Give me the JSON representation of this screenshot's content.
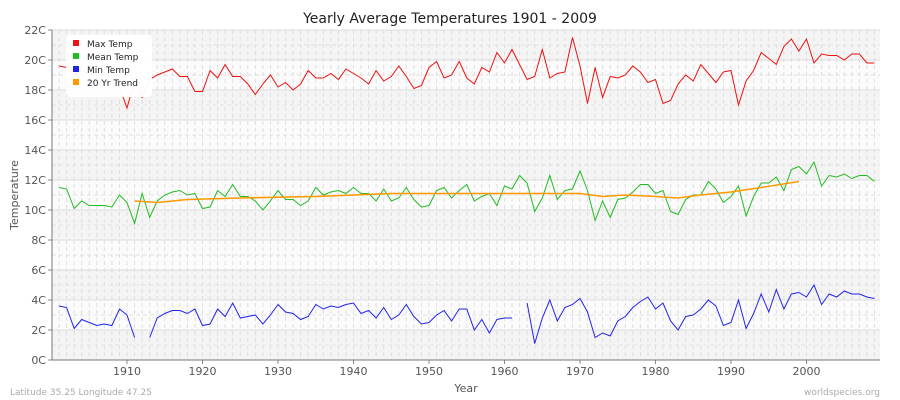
{
  "chart_data": {
    "type": "line",
    "title": "Yearly Average Temperatures 1901 - 2009",
    "xlabel": "Year",
    "ylabel": "Temperature",
    "xlim": [
      1901,
      2009
    ],
    "ylim": [
      0,
      22
    ],
    "x_ticks": [
      1910,
      1920,
      1930,
      1940,
      1950,
      1960,
      1970,
      1980,
      1990,
      2000
    ],
    "y_ticks": [
      "0C",
      "2C",
      "4C",
      "6C",
      "8C",
      "10C",
      "12C",
      "14C",
      "16C",
      "18C",
      "20C",
      "22C"
    ],
    "grid": true,
    "legend_position": "top-left",
    "x_start": 1901,
    "series": [
      {
        "name": "Max Temp",
        "color": "#ee1111",
        "values": [
          19.6,
          19.5,
          19.0,
          19.3,
          19.1,
          19.2,
          19.0,
          19.2,
          18.2,
          16.8,
          18.6,
          17.5,
          18.7,
          19.0,
          19.2,
          19.4,
          18.9,
          18.9,
          17.9,
          17.9,
          19.3,
          18.8,
          19.7,
          18.9,
          18.9,
          18.4,
          17.7,
          18.4,
          19.0,
          18.2,
          18.5,
          18.0,
          18.4,
          19.3,
          18.8,
          18.8,
          19.1,
          18.7,
          19.4,
          19.1,
          18.8,
          18.4,
          19.3,
          18.6,
          18.9,
          19.6,
          18.9,
          18.1,
          18.3,
          19.5,
          19.9,
          18.8,
          19.0,
          19.9,
          18.8,
          18.4,
          19.5,
          19.2,
          20.5,
          19.8,
          20.7,
          19.7,
          18.7,
          18.9,
          20.7,
          18.8,
          19.1,
          19.2,
          21.5,
          19.6,
          17.1,
          19.5,
          17.5,
          18.9,
          18.8,
          19.0,
          19.6,
          19.2,
          18.5,
          18.7,
          17.1,
          17.3,
          18.4,
          19.0,
          18.6,
          19.7,
          19.1,
          18.5,
          19.2,
          19.3,
          17.0,
          18.6,
          19.3,
          20.5,
          20.1,
          19.7,
          20.9,
          21.4,
          20.6,
          21.4,
          19.8,
          20.4,
          20.3,
          20.3,
          20.0,
          20.4,
          20.4,
          19.8,
          19.8
        ]
      },
      {
        "name": "Mean Temp",
        "color": "#22bb22",
        "values": [
          11.5,
          11.4,
          10.1,
          10.6,
          10.3,
          10.3,
          10.3,
          10.2,
          11.0,
          10.5,
          9.1,
          11.1,
          9.5,
          10.6,
          11.0,
          11.2,
          11.3,
          11.0,
          11.1,
          10.1,
          10.2,
          11.3,
          10.9,
          11.7,
          10.9,
          10.9,
          10.6,
          10.0,
          10.6,
          11.3,
          10.7,
          10.7,
          10.3,
          10.6,
          11.5,
          11.0,
          11.2,
          11.3,
          11.1,
          11.5,
          11.1,
          11.1,
          10.6,
          11.4,
          10.6,
          10.8,
          11.5,
          10.7,
          10.2,
          10.3,
          11.3,
          11.5,
          10.8,
          11.3,
          11.7,
          10.6,
          10.9,
          11.1,
          10.3,
          11.6,
          11.4,
          12.3,
          11.8,
          9.9,
          10.8,
          12.3,
          10.7,
          11.3,
          11.4,
          12.6,
          11.3,
          9.3,
          10.6,
          9.5,
          10.7,
          10.8,
          11.2,
          11.7,
          11.7,
          11.1,
          11.3,
          9.9,
          9.7,
          10.7,
          11.0,
          11.0,
          11.9,
          11.4,
          10.5,
          10.9,
          11.6,
          9.6,
          10.9,
          11.8,
          11.8,
          12.2,
          11.3,
          12.7,
          12.9,
          12.4,
          13.2,
          11.6,
          12.3,
          12.2,
          12.4,
          12.1,
          12.3,
          12.3,
          11.9
        ]
      },
      {
        "name": "Min Temp",
        "color": "#2222ee",
        "values": [
          3.6,
          3.5,
          2.1,
          2.7,
          2.5,
          2.3,
          2.4,
          2.3,
          3.4,
          3.0,
          1.5,
          null,
          1.5,
          2.8,
          3.1,
          3.3,
          3.3,
          3.1,
          3.4,
          2.3,
          2.4,
          3.4,
          2.9,
          3.8,
          2.8,
          2.9,
          3.0,
          2.4,
          3.0,
          3.7,
          3.2,
          3.1,
          2.7,
          2.9,
          3.7,
          3.4,
          3.6,
          3.5,
          3.7,
          3.8,
          3.1,
          3.3,
          2.8,
          3.5,
          2.7,
          3.0,
          3.7,
          2.9,
          2.4,
          2.5,
          3.0,
          3.3,
          2.6,
          3.4,
          3.4,
          2.0,
          2.7,
          1.8,
          2.7,
          2.8,
          2.8,
          null,
          3.8,
          1.1,
          2.8,
          4.0,
          2.6,
          3.5,
          3.7,
          4.1,
          3.2,
          1.5,
          1.8,
          1.6,
          2.6,
          2.9,
          3.5,
          3.9,
          4.2,
          3.4,
          3.8,
          2.6,
          2.0,
          2.9,
          3.0,
          3.4,
          4.0,
          3.6,
          2.3,
          2.5,
          4.0,
          2.1,
          3.1,
          4.4,
          3.2,
          4.7,
          3.4,
          4.4,
          4.5,
          4.2,
          5.0,
          3.7,
          4.4,
          4.2,
          4.6,
          4.4,
          4.4,
          4.2,
          4.1
        ]
      },
      {
        "name": "20 Yr Trend",
        "color": "#ff9900",
        "x": [
          1911,
          1914,
          1918,
          1925,
          1935,
          1945,
          1955,
          1960,
          1965,
          1970,
          1973,
          1976,
          1980,
          1983,
          1986,
          1990,
          1994,
          1999
        ],
        "values": [
          10.6,
          10.5,
          10.7,
          10.8,
          10.9,
          11.1,
          11.1,
          11.1,
          11.1,
          11.1,
          10.9,
          11.0,
          10.9,
          10.8,
          11.0,
          11.2,
          11.5,
          11.9
        ]
      }
    ]
  },
  "footer": {
    "location": "Latitude 35.25 Longitude 47.25",
    "source": "worldspecies.org"
  }
}
